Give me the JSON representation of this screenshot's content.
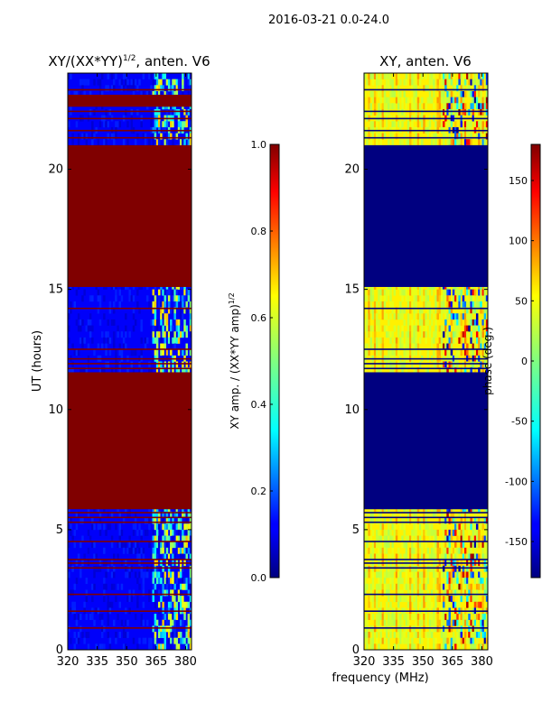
{
  "figure": {
    "suptitle": "2016-03-21 0.0-24.0",
    "xlabel": "frequency (MHz)"
  },
  "colors": {
    "jet_dark_red": "#800000",
    "jet_dark_blue": "#00007f",
    "jet_blue": "#0000ff",
    "jet_cyan": "#00ffff",
    "jet_green": "#80ff80",
    "jet_yellow": "#ffff00",
    "jet_orange": "#ff8000",
    "jet_red": "#ff0000"
  },
  "chart_data": [
    {
      "type": "heatmap",
      "title_base": "XY/(XX*YY)",
      "title_exp": "1/2",
      "title_suffix": ", anten. V6",
      "xlabel": "",
      "ylabel": "UT (hours)",
      "xlim": [
        320,
        383
      ],
      "ylim": [
        0,
        24
      ],
      "xticks": [
        320,
        335,
        350,
        365,
        380
      ],
      "yticks": [
        0,
        5,
        10,
        15,
        20
      ],
      "rfi_column_start_mhz": 363,
      "saturated_value": 1.0,
      "saturated_bands_hours": [
        [
          5.85,
          11.55
        ],
        [
          15.1,
          21.0
        ],
        [
          22.6,
          23.1
        ]
      ],
      "typical_value": 0.12,
      "colorbar": {
        "label_base": "XY amp. / (XX*YY amp)",
        "label_exp": "1/2",
        "range": [
          0.0,
          1.0
        ],
        "ticks": [
          "0.0",
          "0.2",
          "0.4",
          "0.6",
          "0.8",
          "1.0"
        ]
      }
    },
    {
      "type": "heatmap",
      "title": "XY, anten. V6",
      "xlabel": "",
      "ylabel": "",
      "xlim": [
        320,
        383
      ],
      "ylim": [
        0,
        24
      ],
      "xticks": [
        320,
        335,
        350,
        365,
        380
      ],
      "yticks": [
        0,
        5,
        10,
        15,
        20
      ],
      "flagged_value_deg": -180,
      "flagged_bands_hours": [
        [
          5.85,
          11.55
        ],
        [
          15.1,
          21.0
        ]
      ],
      "typical_phase_deg": 50,
      "colorbar": {
        "label": "phase (deg.)",
        "range": [
          -180,
          180
        ],
        "ticks": [
          -150,
          -100,
          -50,
          0,
          50,
          100,
          150
        ]
      }
    }
  ]
}
